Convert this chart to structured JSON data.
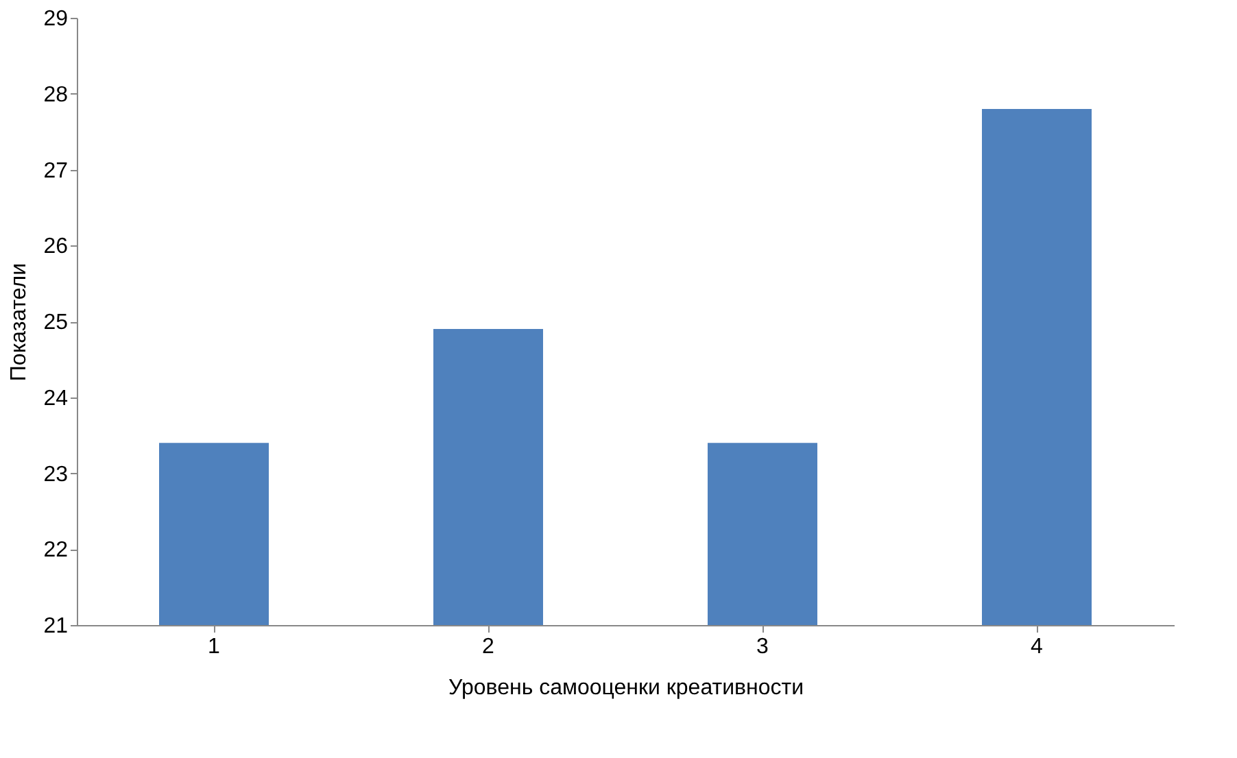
{
  "chart_data": {
    "type": "bar",
    "xlabel": "Уровень самооценки креативности",
    "ylabel": "Показатели",
    "categories": [
      "1",
      "2",
      "3",
      "4"
    ],
    "values": [
      23.4,
      24.9,
      23.4,
      27.8
    ],
    "color": "#4f81bd",
    "ylim": [
      21,
      29
    ],
    "yticks": [
      21,
      22,
      23,
      24,
      25,
      26,
      27,
      28,
      29
    ],
    "grid": false
  }
}
